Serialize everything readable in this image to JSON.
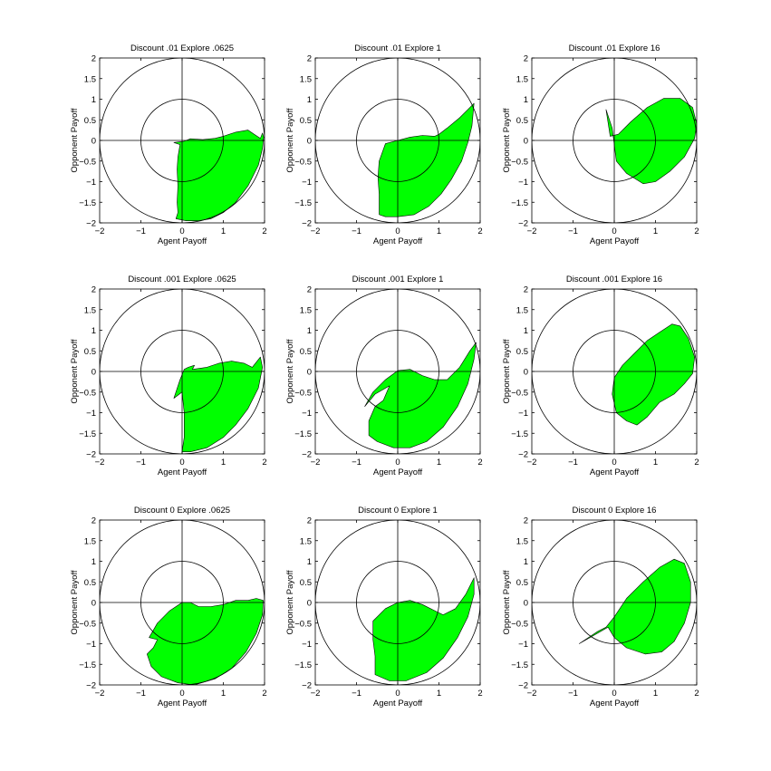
{
  "chart_data": [
    {
      "type": "area",
      "title": "Discount .01 Explore .0625",
      "xlabel": "Agent Payoff",
      "ylabel": "Opponent Payoff",
      "xlim": [
        -2,
        2
      ],
      "ylim": [
        -2,
        2
      ],
      "xticks": [
        "−2",
        "−1",
        "0",
        "1",
        "2"
      ],
      "yticks": [
        "−2",
        "−1.5",
        "−1",
        "−0.5",
        "0",
        "0.5",
        "1",
        "1.5",
        "2"
      ],
      "circles": [
        1,
        2
      ],
      "color": "#00ff00",
      "region": [
        [
          -0.2,
          -0.05
        ],
        [
          0.05,
          -0.02
        ],
        [
          0.2,
          0.04
        ],
        [
          0.5,
          0.02
        ],
        [
          0.8,
          0.05
        ],
        [
          1.0,
          0.1
        ],
        [
          1.3,
          0.2
        ],
        [
          1.6,
          0.25
        ],
        [
          1.75,
          0.15
        ],
        [
          1.9,
          0.05
        ],
        [
          1.95,
          0.18
        ],
        [
          1.98,
          0.08
        ],
        [
          1.95,
          -0.2
        ],
        [
          1.85,
          -0.6
        ],
        [
          1.6,
          -1.1
        ],
        [
          1.3,
          -1.5
        ],
        [
          1.0,
          -1.75
        ],
        [
          0.7,
          -1.9
        ],
        [
          0.4,
          -1.95
        ],
        [
          0.1,
          -1.95
        ],
        [
          -0.15,
          -1.9
        ],
        [
          -0.1,
          -1.75
        ],
        [
          -0.12,
          -1.5
        ],
        [
          -0.1,
          -1.1
        ],
        [
          -0.12,
          -0.7
        ],
        [
          -0.1,
          -0.4
        ],
        [
          -0.05,
          -0.1
        ],
        [
          -0.2,
          -0.05
        ]
      ]
    },
    {
      "type": "area",
      "title": "Discount .01 Explore 1",
      "xlabel": "Agent Payoff",
      "ylabel": "Opponent Payoff",
      "xlim": [
        -2,
        2
      ],
      "ylim": [
        -2,
        2
      ],
      "xticks": [
        "−2",
        "−1",
        "0",
        "1",
        "2"
      ],
      "yticks": [
        "−2",
        "−1.5",
        "−1",
        "−0.5",
        "0",
        "0.5",
        "1",
        "1.5",
        "2"
      ],
      "circles": [
        1,
        2
      ],
      "color": "#00ff00",
      "region": [
        [
          -0.3,
          -0.08
        ],
        [
          0.0,
          0.0
        ],
        [
          0.3,
          0.08
        ],
        [
          0.6,
          0.12
        ],
        [
          0.9,
          0.1
        ],
        [
          1.0,
          0.15
        ],
        [
          1.2,
          0.3
        ],
        [
          1.5,
          0.55
        ],
        [
          1.7,
          0.75
        ],
        [
          1.85,
          0.9
        ],
        [
          1.8,
          0.35
        ],
        [
          1.7,
          -0.05
        ],
        [
          1.55,
          -0.5
        ],
        [
          1.3,
          -0.95
        ],
        [
          1.05,
          -1.3
        ],
        [
          0.75,
          -1.6
        ],
        [
          0.4,
          -1.8
        ],
        [
          0.0,
          -1.85
        ],
        [
          -0.3,
          -1.85
        ],
        [
          -0.45,
          -1.8
        ],
        [
          -0.45,
          -1.3
        ],
        [
          -0.48,
          -0.9
        ],
        [
          -0.45,
          -0.5
        ],
        [
          -0.3,
          -0.08
        ]
      ]
    },
    {
      "type": "area",
      "title": "Discount .01 Explore 16",
      "xlabel": "Agent Payoff",
      "ylabel": "Opponent Payoff",
      "xlim": [
        -2,
        2
      ],
      "ylim": [
        -2,
        2
      ],
      "xticks": [
        "−2",
        "−1",
        "0",
        "1",
        "2"
      ],
      "yticks": [
        "−2",
        "−1.5",
        "−1",
        "−0.5",
        "0",
        "0.5",
        "1",
        "1.5",
        "2"
      ],
      "circles": [
        1,
        2
      ],
      "color": "#00ff00",
      "region": [
        [
          -0.2,
          0.75
        ],
        [
          -0.05,
          0.3
        ],
        [
          0.0,
          -0.1
        ],
        [
          0.05,
          -0.5
        ],
        [
          0.3,
          -0.8
        ],
        [
          0.7,
          -1.05
        ],
        [
          1.0,
          -1.0
        ],
        [
          1.35,
          -0.75
        ],
        [
          1.7,
          -0.4
        ],
        [
          1.95,
          0.05
        ],
        [
          2.0,
          0.4
        ],
        [
          1.9,
          0.8
        ],
        [
          1.6,
          1.02
        ],
        [
          1.2,
          1.02
        ],
        [
          0.8,
          0.8
        ],
        [
          0.4,
          0.45
        ],
        [
          0.1,
          0.15
        ],
        [
          -0.1,
          0.1
        ],
        [
          -0.2,
          0.75
        ]
      ]
    },
    {
      "type": "area",
      "title": "Discount .001 Explore .0625",
      "xlabel": "Agent Payoff",
      "ylabel": "Opponent Payoff",
      "xlim": [
        -2,
        2
      ],
      "ylim": [
        -2,
        2
      ],
      "xticks": [
        "−2",
        "−1",
        "0",
        "1",
        "2"
      ],
      "yticks": [
        "−2",
        "−1.5",
        "−1",
        "−0.5",
        "0",
        "0.5",
        "1",
        "1.5",
        "2"
      ],
      "circles": [
        1,
        2
      ],
      "color": "#00ff00",
      "region": [
        [
          -0.2,
          -0.65
        ],
        [
          -0.05,
          -0.2
        ],
        [
          0.05,
          0.05
        ],
        [
          0.15,
          0.1
        ],
        [
          0.3,
          0.15
        ],
        [
          0.25,
          0.05
        ],
        [
          0.6,
          0.1
        ],
        [
          0.9,
          0.2
        ],
        [
          1.2,
          0.25
        ],
        [
          1.5,
          0.2
        ],
        [
          1.7,
          0.1
        ],
        [
          1.9,
          0.35
        ],
        [
          1.95,
          0.1
        ],
        [
          1.85,
          -0.4
        ],
        [
          1.6,
          -0.9
        ],
        [
          1.3,
          -1.3
        ],
        [
          1.0,
          -1.6
        ],
        [
          0.6,
          -1.85
        ],
        [
          0.2,
          -1.95
        ],
        [
          0.0,
          -1.95
        ],
        [
          0.05,
          -1.6
        ],
        [
          0.05,
          -1.0
        ],
        [
          0.0,
          -0.5
        ],
        [
          -0.2,
          -0.65
        ]
      ]
    },
    {
      "type": "area",
      "title": "Discount .001 Explore 1",
      "xlabel": "Agent Payoff",
      "ylabel": "Opponent Payoff",
      "xlim": [
        -2,
        2
      ],
      "ylim": [
        -2,
        2
      ],
      "xticks": [
        "−2",
        "−1",
        "0",
        "1",
        "2"
      ],
      "yticks": [
        "−2",
        "−1.5",
        "−1",
        "−0.5",
        "0",
        "0.5",
        "1",
        "1.5",
        "2"
      ],
      "circles": [
        1,
        2
      ],
      "color": "#00ff00",
      "region": [
        [
          -0.8,
          -0.85
        ],
        [
          -0.6,
          -0.5
        ],
        [
          -0.3,
          -0.2
        ],
        [
          0.0,
          0.02
        ],
        [
          0.3,
          0.05
        ],
        [
          0.6,
          -0.1
        ],
        [
          0.9,
          -0.2
        ],
        [
          1.2,
          -0.2
        ],
        [
          1.5,
          0.1
        ],
        [
          1.75,
          0.5
        ],
        [
          1.9,
          0.7
        ],
        [
          1.85,
          0.3
        ],
        [
          1.7,
          -0.3
        ],
        [
          1.45,
          -0.85
        ],
        [
          1.1,
          -1.35
        ],
        [
          0.7,
          -1.7
        ],
        [
          0.3,
          -1.85
        ],
        [
          -0.1,
          -1.85
        ],
        [
          -0.5,
          -1.7
        ],
        [
          -0.7,
          -1.55
        ],
        [
          -0.7,
          -1.2
        ],
        [
          -0.55,
          -0.85
        ],
        [
          -0.35,
          -0.7
        ],
        [
          -0.2,
          -0.35
        ],
        [
          -0.55,
          -0.55
        ],
        [
          -0.8,
          -0.85
        ]
      ]
    },
    {
      "type": "area",
      "title": "Discount .001 Explore 16",
      "xlabel": "Agent Payoff",
      "ylabel": "Opponent Payoff",
      "xlim": [
        -2,
        2
      ],
      "ylim": [
        -2,
        2
      ],
      "xticks": [
        "−2",
        "−1",
        "0",
        "1",
        "2"
      ],
      "yticks": [
        "−2",
        "−1.5",
        "−1",
        "−0.5",
        "0",
        "0.5",
        "1",
        "1.5",
        "2"
      ],
      "circles": [
        1,
        2
      ],
      "color": "#00ff00",
      "region": [
        [
          -0.05,
          -0.55
        ],
        [
          0.0,
          -0.15
        ],
        [
          0.2,
          0.15
        ],
        [
          0.5,
          0.45
        ],
        [
          0.8,
          0.75
        ],
        [
          1.1,
          0.95
        ],
        [
          1.4,
          1.15
        ],
        [
          1.6,
          1.1
        ],
        [
          1.8,
          0.8
        ],
        [
          1.95,
          0.35
        ],
        [
          1.9,
          -0.05
        ],
        [
          1.7,
          -0.3
        ],
        [
          1.45,
          -0.55
        ],
        [
          1.1,
          -0.75
        ],
        [
          0.8,
          -1.1
        ],
        [
          0.55,
          -1.3
        ],
        [
          0.3,
          -1.2
        ],
        [
          0.05,
          -1.0
        ],
        [
          -0.05,
          -0.55
        ]
      ]
    },
    {
      "type": "area",
      "title": "Discount 0 Explore .0625",
      "xlabel": "Agent Payoff",
      "ylabel": "Opponent Payoff",
      "xlim": [
        -2,
        2
      ],
      "ylim": [
        -2,
        2
      ],
      "xticks": [
        "−2",
        "−1",
        "0",
        "1",
        "2"
      ],
      "yticks": [
        "−2",
        "−1.5",
        "−1",
        "−0.5",
        "0",
        "0.5",
        "1",
        "1.5",
        "2"
      ],
      "circles": [
        1,
        2
      ],
      "color": "#00ff00",
      "region": [
        [
          -0.8,
          -0.85
        ],
        [
          -0.6,
          -0.5
        ],
        [
          -0.3,
          -0.2
        ],
        [
          0.0,
          0.0
        ],
        [
          0.2,
          0.0
        ],
        [
          0.4,
          -0.1
        ],
        [
          0.7,
          -0.1
        ],
        [
          1.0,
          -0.05
        ],
        [
          1.3,
          0.05
        ],
        [
          1.6,
          0.05
        ],
        [
          1.8,
          0.1
        ],
        [
          1.97,
          0.05
        ],
        [
          1.95,
          -0.3
        ],
        [
          1.8,
          -0.75
        ],
        [
          1.55,
          -1.2
        ],
        [
          1.2,
          -1.6
        ],
        [
          0.8,
          -1.85
        ],
        [
          0.3,
          -2.0
        ],
        [
          -0.1,
          -1.95
        ],
        [
          -0.5,
          -1.8
        ],
        [
          -0.75,
          -1.55
        ],
        [
          -0.85,
          -1.25
        ],
        [
          -0.7,
          -1.1
        ],
        [
          -0.6,
          -0.9
        ],
        [
          -0.8,
          -0.85
        ]
      ]
    },
    {
      "type": "area",
      "title": "Discount 0 Explore 1",
      "xlabel": "Agent Payoff",
      "ylabel": "Opponent Payoff",
      "xlim": [
        -2,
        2
      ],
      "ylim": [
        -2,
        2
      ],
      "xticks": [
        "−2",
        "−1",
        "0",
        "1",
        "2"
      ],
      "yticks": [
        "−2",
        "−1.5",
        "−1",
        "−0.5",
        "0",
        "0.5",
        "1",
        "1.5",
        "2"
      ],
      "circles": [
        1,
        2
      ],
      "color": "#00ff00",
      "region": [
        [
          -0.6,
          -0.45
        ],
        [
          -0.3,
          -0.15
        ],
        [
          0.0,
          0.0
        ],
        [
          0.3,
          0.05
        ],
        [
          0.6,
          -0.05
        ],
        [
          0.9,
          -0.2
        ],
        [
          1.1,
          -0.3
        ],
        [
          1.4,
          -0.15
        ],
        [
          1.65,
          0.2
        ],
        [
          1.85,
          0.6
        ],
        [
          1.85,
          0.2
        ],
        [
          1.7,
          -0.35
        ],
        [
          1.45,
          -0.85
        ],
        [
          1.1,
          -1.35
        ],
        [
          0.7,
          -1.7
        ],
        [
          0.2,
          -1.9
        ],
        [
          -0.2,
          -1.9
        ],
        [
          -0.55,
          -1.75
        ],
        [
          -0.55,
          -1.3
        ],
        [
          -0.6,
          -0.9
        ],
        [
          -0.6,
          -0.45
        ]
      ]
    },
    {
      "type": "area",
      "title": "Discount 0 Explore 16",
      "xlabel": "Agent Payoff",
      "ylabel": "Opponent Payoff",
      "xlim": [
        -2,
        2
      ],
      "ylim": [
        -2,
        2
      ],
      "xticks": [
        "−2",
        "−1",
        "0",
        "1",
        "2"
      ],
      "yticks": [
        "−2",
        "−1.5",
        "−1",
        "−0.5",
        "0",
        "0.5",
        "1",
        "1.5",
        "2"
      ],
      "circles": [
        1,
        2
      ],
      "color": "#00ff00",
      "region": [
        [
          -0.85,
          -1.0
        ],
        [
          -0.4,
          -0.7
        ],
        [
          -0.2,
          -0.6
        ],
        [
          0.0,
          -0.35
        ],
        [
          0.3,
          0.1
        ],
        [
          0.7,
          0.5
        ],
        [
          1.1,
          0.85
        ],
        [
          1.45,
          1.05
        ],
        [
          1.7,
          0.95
        ],
        [
          1.85,
          0.5
        ],
        [
          1.85,
          0.0
        ],
        [
          1.7,
          -0.5
        ],
        [
          1.45,
          -0.95
        ],
        [
          1.15,
          -1.2
        ],
        [
          0.75,
          -1.25
        ],
        [
          0.3,
          -1.1
        ],
        [
          0.0,
          -0.85
        ],
        [
          -0.15,
          -0.6
        ],
        [
          -0.85,
          -1.0
        ]
      ]
    }
  ]
}
